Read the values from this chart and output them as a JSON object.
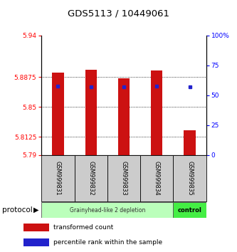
{
  "title": "GDS5113 / 10449061",
  "samples": [
    "GSM999831",
    "GSM999832",
    "GSM999833",
    "GSM999834",
    "GSM999835"
  ],
  "bar_bottom": 5.79,
  "bar_tops": [
    5.893,
    5.897,
    5.886,
    5.896,
    5.821
  ],
  "blue_y": [
    5.876,
    5.875,
    5.875,
    5.876,
    5.875
  ],
  "ylim": [
    5.79,
    5.94
  ],
  "yticks_left": [
    5.79,
    5.8125,
    5.85,
    5.8875,
    5.94
  ],
  "yticks_right_pct": [
    0,
    25,
    50,
    75,
    100
  ],
  "bar_color": "#cc1111",
  "blue_color": "#2222cc",
  "protocol_labels": [
    "Grainyhead-like 2 depletion",
    "control"
  ],
  "protocol_colors": [
    "#bbffbb",
    "#44ee44"
  ],
  "sample_bg_color": "#cccccc",
  "red_color": "#cc1111",
  "blue_color2": "#2222cc",
  "legend_red_label": "transformed count",
  "legend_blue_label": "percentile rank within the sample"
}
